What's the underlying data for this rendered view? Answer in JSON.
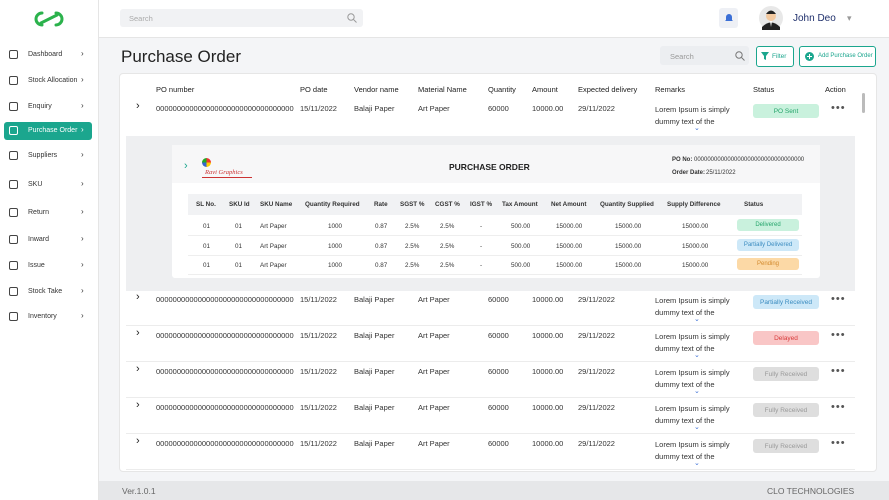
{
  "sidebar": {
    "items": [
      "Dashboard",
      "Stock Allocation",
      "Enquiry",
      "Purchase Order",
      "Suppliers",
      "SKU",
      "Return",
      "Inward",
      "Issue",
      "Stock Take",
      "Inventory"
    ],
    "active": 3
  },
  "topbar": {
    "search_placeholder": "Search",
    "user_name": "John Deo"
  },
  "page": {
    "title": "Purchase Order",
    "search_placeholder": "Search",
    "filter_button": "Filter",
    "add_button": "Add Purchase Order"
  },
  "table": {
    "columns": [
      "PO number",
      "PO date",
      "Vendor name",
      "Material Name",
      "Quantity",
      "Amount",
      "Expected delivery",
      "Remarks",
      "Status",
      "Action"
    ],
    "rows": [
      [
        "000000000000000000000000000000000",
        "15/11/2022",
        "Balaji Paper",
        "Art Paper",
        "60000",
        "10000.00",
        "29/11/2022",
        "Lorem Ipsum is simply dummy text of the",
        "PO Sent"
      ],
      [
        "000000000000000000000000000000000",
        "15/11/2022",
        "Balaji Paper",
        "Art Paper",
        "60000",
        "10000.00",
        "29/11/2022",
        "Lorem Ipsum is simply dummy text of the",
        "Partially Received"
      ],
      [
        "000000000000000000000000000000000",
        "15/11/2022",
        "Balaji Paper",
        "Art Paper",
        "60000",
        "10000.00",
        "29/11/2022",
        "Lorem Ipsum is simply dummy text of the",
        "Delayed"
      ],
      [
        "000000000000000000000000000000000",
        "15/11/2022",
        "Balaji Paper",
        "Art Paper",
        "60000",
        "10000.00",
        "29/11/2022",
        "Lorem Ipsum is simply dummy text of the",
        "Fully Received"
      ],
      [
        "000000000000000000000000000000000",
        "15/11/2022",
        "Balaji Paper",
        "Art Paper",
        "60000",
        "10000.00",
        "29/11/2022",
        "Lorem Ipsum is simply dummy text of the",
        "Fully Received"
      ],
      [
        "000000000000000000000000000000000",
        "15/11/2022",
        "Balaji Paper",
        "Art Paper",
        "60000",
        "10000.00",
        "29/11/2022",
        "Lorem Ipsum is simply dummy text of the",
        "Fully Received"
      ]
    ],
    "status_colors": [
      {
        "bg": "#c9f1dd",
        "fg": "#25a56b"
      },
      {
        "bg": "#cde8f8",
        "fg": "#3b8cc0"
      },
      {
        "bg": "#f9c6c6",
        "fg": "#d83a3a"
      },
      {
        "bg": "#dedede",
        "fg": "#9a9a9a"
      },
      {
        "bg": "#dedede",
        "fg": "#9a9a9a"
      },
      {
        "bg": "#dedede",
        "fg": "#9a9a9a"
      }
    ]
  },
  "detail": {
    "brand": "Ravi Graphics",
    "title": "PURCHASE ORDER",
    "po_no_label": "PO No:",
    "po_no": "000000000000000000000000000000000",
    "order_date_label": "Order Date:",
    "order_date": "25/11/2022",
    "columns": [
      "SL No.",
      "SKU Id",
      "SKU Name",
      "Quantity Required",
      "Rate",
      "SGST %",
      "CGST %",
      "IGST %",
      "Tax Amount",
      "Net Amount",
      "Quantity Supplied",
      "Supply Difference",
      "Status"
    ],
    "rows": [
      [
        "01",
        "01",
        "Art Paper",
        "1000",
        "0.87",
        "2.5%",
        "2.5%",
        "-",
        "500.00",
        "15000.00",
        "15000.00",
        "15000.00",
        "Delivered"
      ],
      [
        "01",
        "01",
        "Art Paper",
        "1000",
        "0.87",
        "2.5%",
        "2.5%",
        "-",
        "500.00",
        "15000.00",
        "15000.00",
        "15000.00",
        "Partially Delivered"
      ],
      [
        "01",
        "01",
        "Art Paper",
        "1000",
        "0.87",
        "2.5%",
        "2.5%",
        "-",
        "500.00",
        "15000.00",
        "15000.00",
        "15000.00",
        "Pending"
      ]
    ],
    "status_colors": [
      {
        "bg": "#c9f1dd",
        "fg": "#25a56b"
      },
      {
        "bg": "#cde8f8",
        "fg": "#3b8cc0"
      },
      {
        "bg": "#fcd9a6",
        "fg": "#d2892c"
      }
    ]
  },
  "footer": {
    "version": "Ver.1.0.1",
    "company": "CLO TECHNOLOGIES"
  }
}
